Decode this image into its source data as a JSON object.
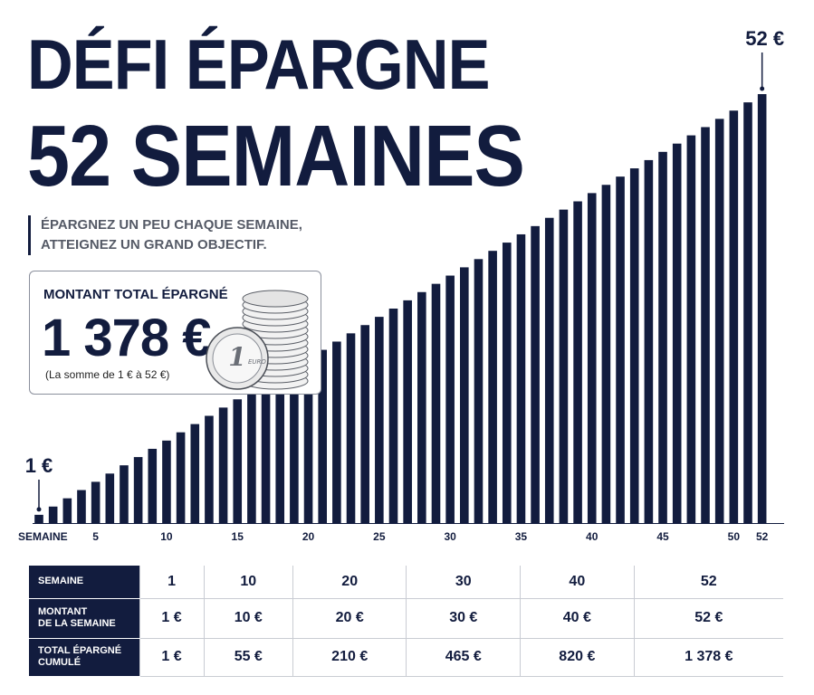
{
  "header": {
    "title_line1": "DÉFI ÉPARGNE",
    "title_line2": "52 SEMAINES",
    "tagline_line1": "ÉPARGNEZ UN PEU CHAQUE SEMAINE,",
    "tagline_line2": "ATTEIGNEZ UN GRAND OBJECTIF."
  },
  "total_box": {
    "label": "MONTANT TOTAL ÉPARGNÉ",
    "value": "1 378 €",
    "note": "(La somme de 1 € à 52 €)",
    "illustration": "euro-coin-stack-icon",
    "coin_text": "1 EURO"
  },
  "chart_data": {
    "type": "bar",
    "title": "",
    "xlabel": "SEMAINE",
    "ylabel": "",
    "x": [
      1,
      2,
      3,
      4,
      5,
      6,
      7,
      8,
      9,
      10,
      11,
      12,
      13,
      14,
      15,
      16,
      17,
      18,
      19,
      20,
      21,
      22,
      23,
      24,
      25,
      26,
      27,
      28,
      29,
      30,
      31,
      32,
      33,
      34,
      35,
      36,
      37,
      38,
      39,
      40,
      41,
      42,
      43,
      44,
      45,
      46,
      47,
      48,
      49,
      50,
      51,
      52
    ],
    "values": [
      1,
      2,
      3,
      4,
      5,
      6,
      7,
      8,
      9,
      10,
      11,
      12,
      13,
      14,
      15,
      16,
      17,
      18,
      19,
      20,
      21,
      22,
      23,
      24,
      25,
      26,
      27,
      28,
      29,
      30,
      31,
      32,
      33,
      34,
      35,
      36,
      37,
      38,
      39,
      40,
      41,
      42,
      43,
      44,
      45,
      46,
      47,
      48,
      49,
      50,
      51,
      52
    ],
    "x_tick_labels": [
      "5",
      "10",
      "15",
      "20",
      "25",
      "30",
      "35",
      "40",
      "45",
      "50",
      "52"
    ],
    "x_tick_values": [
      5,
      10,
      15,
      20,
      25,
      30,
      35,
      40,
      45,
      50,
      52
    ],
    "ylim": [
      0,
      52
    ],
    "grid": false,
    "bar_color": "#121c3e",
    "annotations": [
      {
        "label": "1 €",
        "week": 1
      },
      {
        "label": "52 €",
        "week": 52
      }
    ]
  },
  "table": {
    "row_headers": [
      [
        "SEMAINE"
      ],
      [
        "MONTANT",
        "DE LA SEMAINE"
      ],
      [
        "TOTAL ÉPARGNÉ",
        "CUMULÉ"
      ]
    ],
    "weeks": [
      "1",
      "10",
      "20",
      "30",
      "40",
      "52"
    ],
    "weekly_amounts": [
      "1 €",
      "10 €",
      "20 €",
      "30 €",
      "40 €",
      "52 €"
    ],
    "cumulative_totals": [
      "1 €",
      "55 €",
      "210 €",
      "465 €",
      "820 €",
      "1 378 €"
    ]
  },
  "colors": {
    "navy": "#121c3e",
    "tagline_gray": "#555a66",
    "background": "#ffffff"
  }
}
